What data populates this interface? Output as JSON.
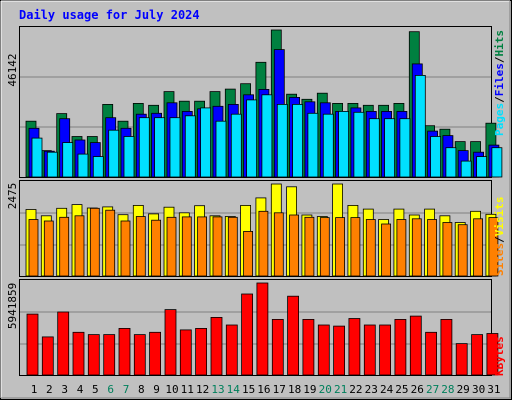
{
  "chart_data": [
    {
      "type": "bar",
      "panel": "pages-files-hits",
      "title": "Daily usage for July 2024",
      "ymax_label": "46142",
      "legend": {
        "pages": "Pages",
        "files": "Files",
        "hits": "Hits",
        "separator": "/"
      },
      "categories": [
        "1",
        "2",
        "3",
        "4",
        "5",
        "6",
        "7",
        "8",
        "9",
        "10",
        "11",
        "12",
        "13",
        "14",
        "15",
        "16",
        "17",
        "18",
        "19",
        "20",
        "21",
        "22",
        "23",
        "24",
        "25",
        "26",
        "27",
        "28",
        "29",
        "30",
        "31"
      ],
      "weekend_days": [
        "6",
        "7",
        "13",
        "14",
        "20",
        "21",
        "27",
        "28"
      ],
      "series": [
        {
          "name": "Hits",
          "color": "#008040",
          "values": [
            17500,
            8300,
            19900,
            12700,
            12700,
            22800,
            17500,
            23100,
            22500,
            26800,
            23800,
            23800,
            26800,
            27600,
            29300,
            36000,
            46142,
            26000,
            24400,
            26300,
            23100,
            23100,
            22500,
            22500,
            23100,
            45600,
            16100,
            15000,
            11100,
            11100,
            16900
          ]
        },
        {
          "name": "Files",
          "color": "#0000ff",
          "values": [
            15300,
            8100,
            18300,
            11600,
            10800,
            18600,
            15300,
            19700,
            20000,
            23300,
            20600,
            21400,
            22200,
            22800,
            25800,
            27500,
            40000,
            25000,
            23600,
            23300,
            20600,
            21700,
            20600,
            20600,
            20600,
            35500,
            14400,
            13000,
            8300,
            7800,
            10000
          ]
        },
        {
          "name": "Pages",
          "color": "#00e0ff",
          "values": [
            12200,
            7800,
            10800,
            7200,
            6400,
            14700,
            12700,
            18600,
            18600,
            18600,
            19200,
            21700,
            17500,
            19700,
            24200,
            25800,
            22800,
            22800,
            20000,
            19700,
            20600,
            20300,
            18300,
            18300,
            18300,
            31900,
            12700,
            9200,
            5000,
            6400,
            9200
          ]
        }
      ]
    },
    {
      "type": "bar",
      "panel": "visits-sites",
      "ymax_label": "2475",
      "legend": {
        "sites": "Sites",
        "visits": "Visits",
        "separator": "/"
      },
      "categories": [
        "1",
        "2",
        "3",
        "4",
        "5",
        "6",
        "7",
        "8",
        "9",
        "10",
        "11",
        "12",
        "13",
        "14",
        "15",
        "16",
        "17",
        "18",
        "19",
        "20",
        "21",
        "22",
        "23",
        "24",
        "25",
        "26",
        "27",
        "28",
        "29",
        "30",
        "31"
      ],
      "series": [
        {
          "name": "Visits",
          "color": "#ffff00",
          "values": [
            1790,
            1620,
            1820,
            1920,
            1830,
            1860,
            1650,
            1900,
            1670,
            1850,
            1700,
            1890,
            1620,
            1600,
            1900,
            2100,
            2475,
            2400,
            1640,
            1600,
            2475,
            1900,
            1800,
            1520,
            1800,
            1640,
            1800,
            1620,
            1440,
            1740,
            1660
          ]
        },
        {
          "name": "Sites",
          "color": "#ff8000",
          "values": [
            1520,
            1480,
            1580,
            1620,
            1820,
            1770,
            1480,
            1600,
            1500,
            1580,
            1590,
            1590,
            1590,
            1580,
            1200,
            1740,
            1700,
            1640,
            1580,
            1570,
            1570,
            1570,
            1520,
            1400,
            1520,
            1540,
            1520,
            1440,
            1380,
            1540,
            1570
          ]
        }
      ]
    },
    {
      "type": "bar",
      "panel": "kbytes",
      "ymax_label": "5941859",
      "legend": {
        "kbytes": "KBytes"
      },
      "categories": [
        "1",
        "2",
        "3",
        "4",
        "5",
        "6",
        "7",
        "8",
        "9",
        "10",
        "11",
        "12",
        "13",
        "14",
        "15",
        "16",
        "17",
        "18",
        "19",
        "20",
        "21",
        "22",
        "23",
        "24",
        "25",
        "26",
        "27",
        "28",
        "29",
        "30",
        "31"
      ],
      "series": [
        {
          "name": "KBytes",
          "color": "#ff0000",
          "values": [
            3930000,
            2460000,
            4070000,
            2760000,
            2610000,
            2610000,
            3010000,
            2610000,
            2760000,
            4220000,
            2910000,
            3010000,
            3720000,
            3230000,
            5230000,
            5940000,
            3590000,
            5090000,
            3590000,
            3230000,
            3160000,
            3650000,
            3230000,
            3230000,
            3590000,
            3800000,
            2760000,
            3590000,
            2030000,
            2610000,
            2680000
          ]
        }
      ]
    }
  ],
  "colors": {
    "background": "#c0c0c0",
    "title": "#0000ff",
    "tick_weekday": "#000000",
    "tick_weekend": "#00805c",
    "grid": "#808080"
  }
}
